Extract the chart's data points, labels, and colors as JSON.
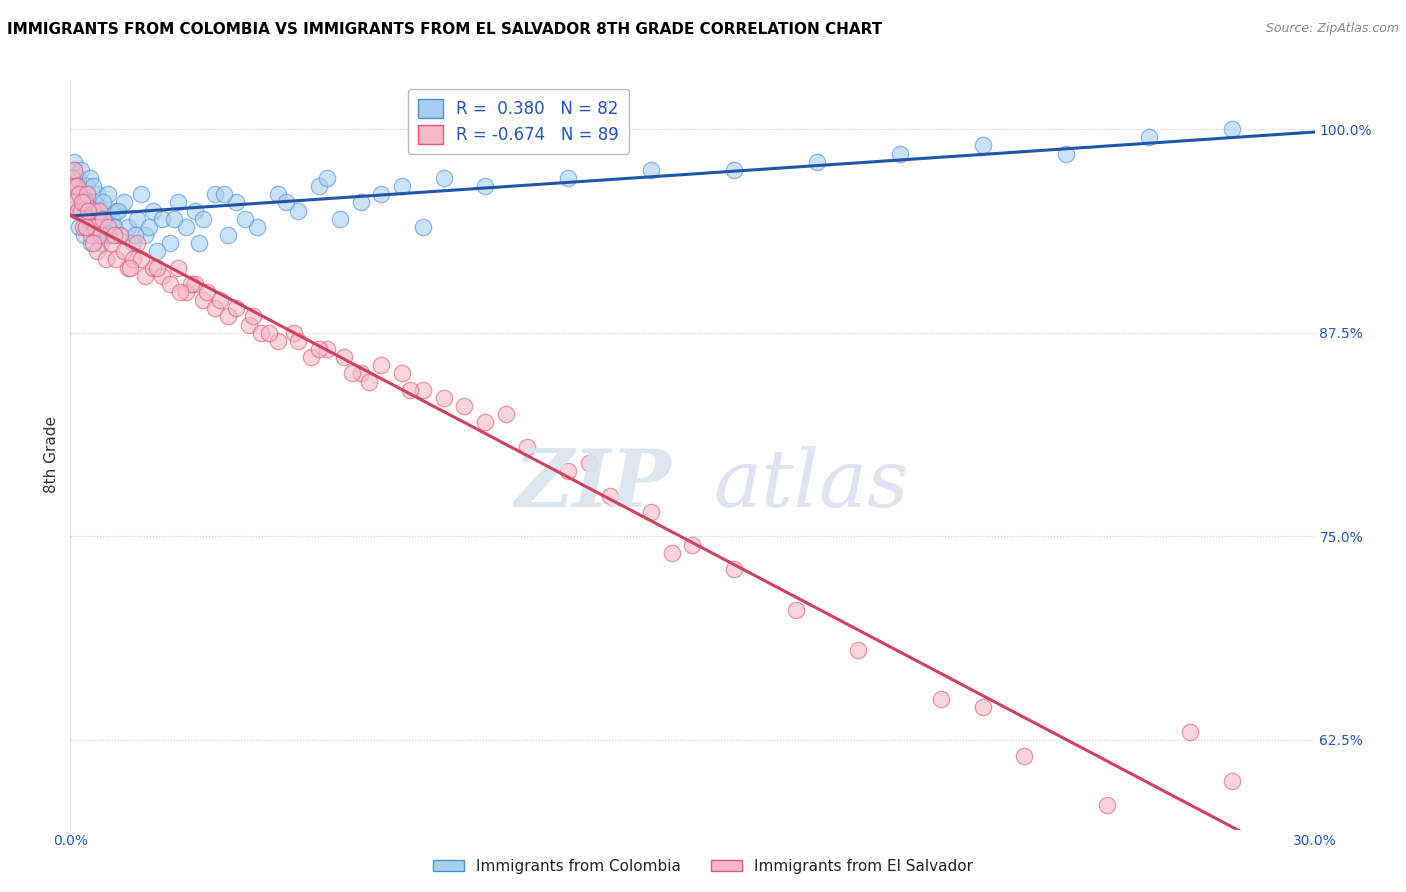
{
  "title": "IMMIGRANTS FROM COLOMBIA VS IMMIGRANTS FROM EL SALVADOR 8TH GRADE CORRELATION CHART",
  "source": "Source: ZipAtlas.com",
  "ylabel": "8th Grade",
  "xlim": [
    0.0,
    30.0
  ],
  "ylim": [
    57.0,
    103.0
  ],
  "yticks": [
    62.5,
    75.0,
    87.5,
    100.0
  ],
  "legend_r_colombia": "0.380",
  "legend_n_colombia": "82",
  "legend_r_salvador": "-0.674",
  "legend_n_salvador": "89",
  "colombia_color": "#a8cff0",
  "salvador_color": "#f5b8c8",
  "colombia_edge_color": "#4a90d9",
  "salvador_edge_color": "#e05878",
  "colombia_line_color": "#2255aa",
  "salvador_line_color": "#d04060",
  "colombia_scatter_x": [
    0.05,
    0.08,
    0.1,
    0.12,
    0.15,
    0.18,
    0.2,
    0.22,
    0.25,
    0.28,
    0.3,
    0.32,
    0.35,
    0.38,
    0.4,
    0.42,
    0.45,
    0.48,
    0.5,
    0.55,
    0.6,
    0.65,
    0.7,
    0.75,
    0.8,
    0.85,
    0.9,
    0.95,
    1.0,
    1.1,
    1.2,
    1.3,
    1.4,
    1.5,
    1.6,
    1.7,
    1.8,
    1.9,
    2.0,
    2.2,
    2.4,
    2.6,
    2.8,
    3.0,
    3.2,
    3.5,
    3.8,
    4.0,
    4.5,
    5.0,
    5.5,
    6.0,
    6.5,
    7.0,
    7.5,
    8.0,
    9.0,
    10.0,
    12.0,
    14.0,
    16.0,
    18.0,
    20.0,
    22.0,
    24.0,
    26.0,
    28.0,
    5.2,
    3.1,
    4.2,
    2.1,
    1.55,
    0.55,
    0.68,
    0.78,
    0.92,
    1.05,
    1.15,
    2.5,
    3.7,
    6.2,
    8.5
  ],
  "colombia_scatter_y": [
    96.0,
    97.5,
    98.0,
    96.5,
    95.0,
    97.0,
    94.0,
    96.5,
    97.5,
    95.5,
    96.0,
    93.5,
    95.0,
    94.0,
    96.5,
    95.5,
    94.5,
    97.0,
    93.0,
    94.0,
    95.5,
    96.0,
    94.5,
    93.0,
    95.0,
    94.0,
    96.0,
    93.5,
    94.5,
    95.0,
    93.5,
    95.5,
    94.0,
    93.0,
    94.5,
    96.0,
    93.5,
    94.0,
    95.0,
    94.5,
    93.0,
    95.5,
    94.0,
    95.0,
    94.5,
    96.0,
    93.5,
    95.5,
    94.0,
    96.0,
    95.0,
    96.5,
    94.5,
    95.5,
    96.0,
    96.5,
    97.0,
    96.5,
    97.0,
    97.5,
    97.5,
    98.0,
    98.5,
    99.0,
    98.5,
    99.5,
    100.0,
    95.5,
    93.0,
    94.5,
    92.5,
    93.5,
    96.5,
    94.5,
    95.5,
    93.5,
    94.0,
    95.0,
    94.5,
    96.0,
    97.0,
    94.0
  ],
  "salvador_scatter_x": [
    0.05,
    0.08,
    0.1,
    0.12,
    0.15,
    0.18,
    0.2,
    0.25,
    0.3,
    0.35,
    0.4,
    0.45,
    0.5,
    0.55,
    0.6,
    0.65,
    0.7,
    0.75,
    0.8,
    0.85,
    0.9,
    1.0,
    1.1,
    1.2,
    1.3,
    1.4,
    1.5,
    1.6,
    1.8,
    2.0,
    2.2,
    2.4,
    2.6,
    2.8,
    3.0,
    3.2,
    3.5,
    3.8,
    4.0,
    4.3,
    4.6,
    5.0,
    5.4,
    5.8,
    6.2,
    6.6,
    7.0,
    7.5,
    8.0,
    8.5,
    9.0,
    9.5,
    10.0,
    11.0,
    12.0,
    13.0,
    14.0,
    15.0,
    16.0,
    17.5,
    19.0,
    21.0,
    23.0,
    25.0,
    2.1,
    3.3,
    4.8,
    1.7,
    2.9,
    5.5,
    6.8,
    7.2,
    8.2,
    1.05,
    0.55,
    0.38,
    3.6,
    4.4,
    6.0,
    10.5,
    12.5,
    14.5,
    22.0,
    27.0,
    28.0,
    0.28,
    0.42,
    1.45,
    2.65
  ],
  "salvador_scatter_y": [
    97.0,
    96.5,
    97.5,
    95.5,
    96.5,
    95.0,
    96.0,
    95.0,
    94.0,
    95.5,
    96.0,
    94.5,
    93.5,
    95.0,
    94.0,
    92.5,
    95.0,
    93.5,
    94.5,
    92.0,
    94.0,
    93.0,
    92.0,
    93.5,
    92.5,
    91.5,
    92.0,
    93.0,
    91.0,
    91.5,
    91.0,
    90.5,
    91.5,
    90.0,
    90.5,
    89.5,
    89.0,
    88.5,
    89.0,
    88.0,
    87.5,
    87.0,
    87.5,
    86.0,
    86.5,
    86.0,
    85.0,
    85.5,
    85.0,
    84.0,
    83.5,
    83.0,
    82.0,
    80.5,
    79.0,
    77.5,
    76.5,
    74.5,
    73.0,
    70.5,
    68.0,
    65.0,
    61.5,
    58.5,
    91.5,
    90.0,
    87.5,
    92.0,
    90.5,
    87.0,
    85.0,
    84.5,
    84.0,
    93.5,
    93.0,
    94.0,
    89.5,
    88.5,
    86.5,
    82.5,
    79.5,
    74.0,
    64.5,
    63.0,
    60.0,
    95.5,
    95.0,
    91.5,
    90.0
  ],
  "background_color": "#ffffff",
  "grid_color": "#cccccc",
  "title_fontsize": 11,
  "tick_fontsize": 10,
  "source_fontsize": 9,
  "legend_fontsize": 12,
  "axis_label_fontsize": 11
}
